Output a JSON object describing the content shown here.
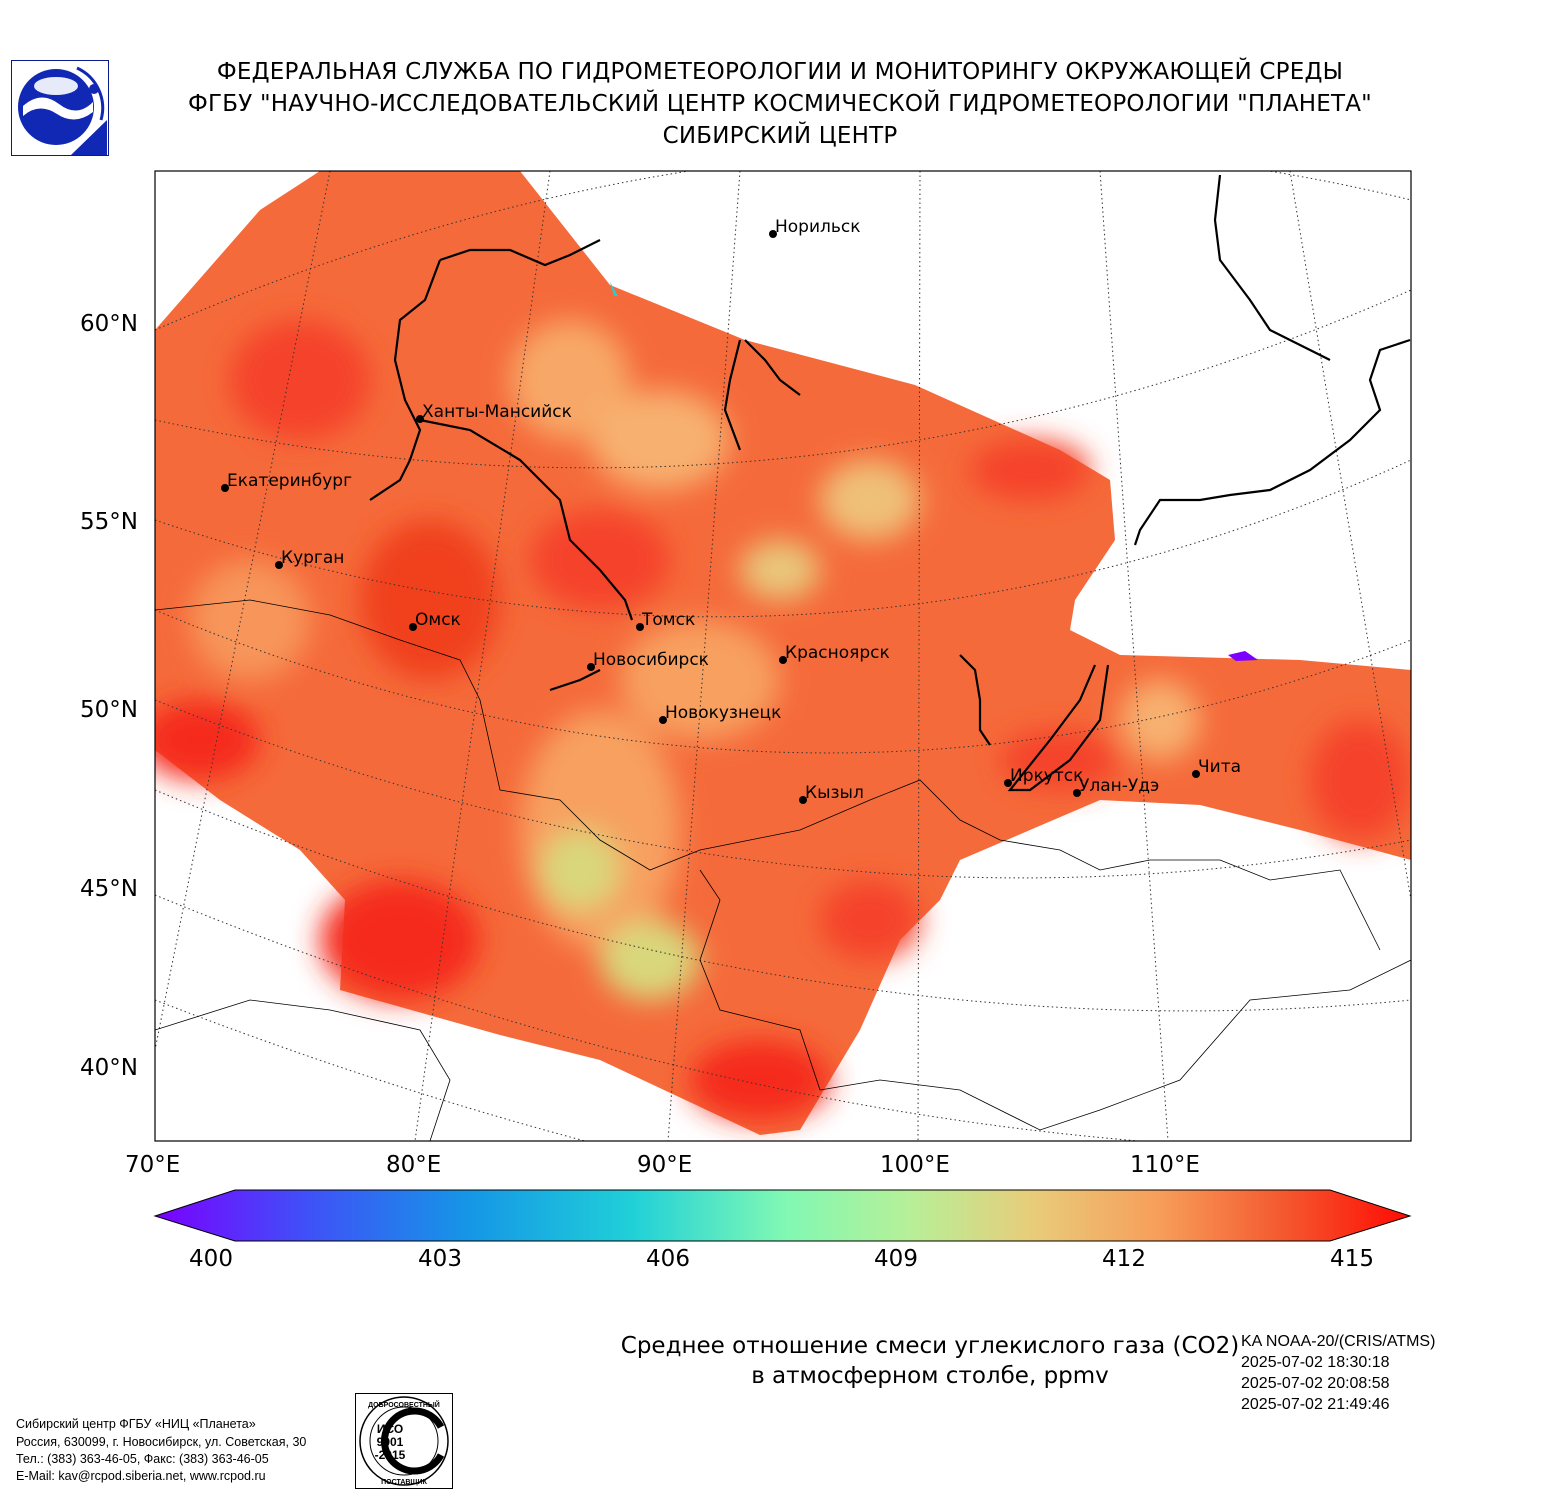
{
  "header": {
    "line1": "ФЕДЕРАЛЬНАЯ СЛУЖБА ПО ГИДРОМЕТЕОРОЛОГИИ И МОНИТОРИНГУ ОКРУЖАЮЩЕЙ СРЕДЫ",
    "line2": "ФГБУ \"НАУЧНО-ИССЛЕДОВАТЕЛЬСКИЙ ЦЕНТР КОСМИЧЕСКОЙ ГИДРОМЕТЕОРОЛОГИИ \"ПЛАНЕТА\"",
    "line3": "СИБИРСКИЙ ЦЕНТР"
  },
  "map": {
    "projection": "conic",
    "lat_labels": [
      "60°N",
      "55°N",
      "50°N",
      "45°N",
      "40°N"
    ],
    "lon_labels": [
      "70°E",
      "80°E",
      "90°E",
      "100°E",
      "110°E"
    ],
    "cities": [
      {
        "name": "Норильск"
      },
      {
        "name": "Ханты-Мансийск"
      },
      {
        "name": "Екатеринбург"
      },
      {
        "name": "Курган"
      },
      {
        "name": "Омск"
      },
      {
        "name": "Томск"
      },
      {
        "name": "Новосибирск"
      },
      {
        "name": "Красноярск"
      },
      {
        "name": "Новокузнецк"
      },
      {
        "name": "Кызыл"
      },
      {
        "name": "Иркутск"
      },
      {
        "name": "Улан-Удэ"
      },
      {
        "name": "Чита"
      }
    ],
    "colors": {
      "high": "#f52a1a",
      "mid": "#f56a3a",
      "warm": "#f7a060",
      "low": "#d9d77c",
      "min": "#7b00ff"
    }
  },
  "colorbar": {
    "ticks": [
      "400",
      "403",
      "406",
      "409",
      "412",
      "415"
    ],
    "range": [
      400,
      415
    ],
    "extend": "both",
    "colormap": "rainbow"
  },
  "parameter": {
    "line1": "Среднее отношение смеси углекислого газа (CO2)",
    "line2": "в атмосферном столбе, ppmv"
  },
  "satellite": {
    "name": "KA NOAA-20/(CRIS/ATMS)",
    "passes": [
      "2025-07-02 18:30:18",
      "2025-07-02 20:08:58",
      "2025-07-02 21:49:46"
    ]
  },
  "footer": {
    "lines": [
      "Сибирский центр ФГБУ «НИЦ «Планета»",
      "Россия, 630099, г. Новосибирск, ул. Советская, 30",
      "Тел.: (383) 363-46-05, Факс: (383) 363-46-05",
      "E-Mail: kav@rcpod.siberia.net, www.rcpod.ru"
    ],
    "iso_text": [
      "ДОБРОСОВЕСТНЫЙ",
      "ИСО",
      "9001",
      "-2015",
      "ПОСТАВЩИК"
    ]
  }
}
